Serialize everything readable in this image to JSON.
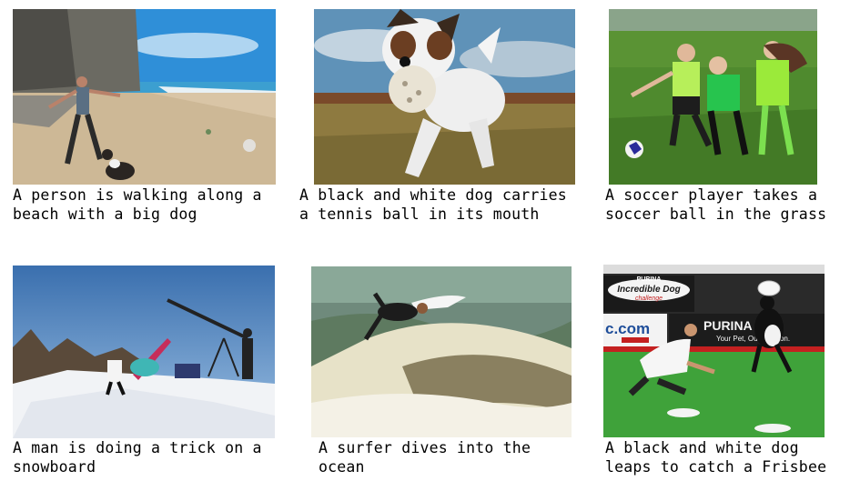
{
  "items": [
    {
      "icon": "beach-dog-photo",
      "lines": [
        "A person is walking along a",
        "beach with a big dog"
      ]
    },
    {
      "icon": "dog-ball-photo",
      "lines": [
        "A black and white dog carries",
        "a tennis ball in its mouth"
      ]
    },
    {
      "icon": "soccer-photo",
      "lines": [
        "A soccer player takes a",
        "soccer ball in the grass"
      ]
    },
    {
      "icon": "snowboard-photo",
      "lines": [
        "A man is doing a trick on a",
        "snowboard"
      ]
    },
    {
      "icon": "surfer-photo",
      "lines": [
        "A surfer dives into the",
        "ocean"
      ]
    },
    {
      "icon": "frisbee-dog-photo",
      "lines": [
        "A black and white dog",
        "leaps to catch a Frisbee"
      ]
    }
  ],
  "signage": {
    "purina": "PURINA",
    "incredible_dog": "Incredible Dog",
    "challenge": "challenge",
    "com": "c.com",
    "purina2": "PURINA",
    "your_pet": "Your Pet, Our Passion."
  }
}
